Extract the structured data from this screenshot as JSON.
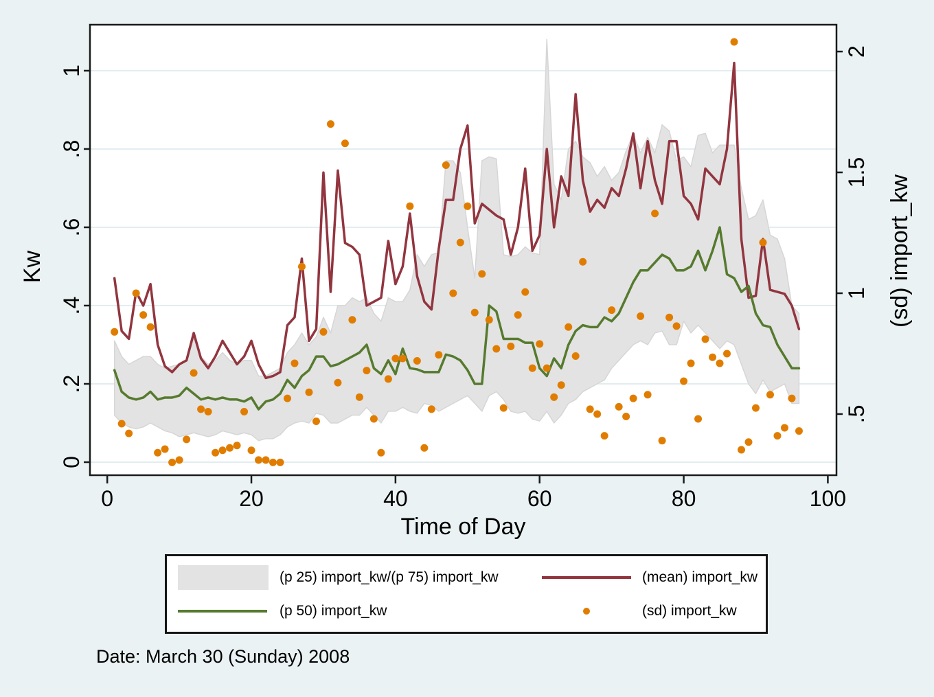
{
  "window": {
    "background_color": "#eaf2f3",
    "plot_background_color": "#ffffff",
    "gridline_color": "#e2edf0",
    "frame_color": "#1a1a1a"
  },
  "chart_data": {
    "type": "line",
    "title": "",
    "caption": "Date: March 30 (Sunday) 2008",
    "grid": "horizontal",
    "x_start": 1,
    "n_points": 96,
    "axes": {
      "x": {
        "label": "Time of Day",
        "tick_labels": [
          "0",
          "20",
          "40",
          "60",
          "80",
          "100"
        ],
        "tick_values": [
          0,
          20,
          40,
          60,
          80,
          100
        ],
        "range": [
          -2.4,
          101.2
        ]
      },
      "y_left": {
        "label": "Kw",
        "tick_labels": [
          "0",
          ".2",
          ".4",
          ".6",
          ".8",
          "1"
        ],
        "tick_values": [
          0,
          0.2,
          0.4,
          0.6,
          0.8,
          1
        ],
        "range": [
          -0.0333,
          1.1175
        ]
      },
      "y_right": {
        "label": "(sd) import_kw",
        "tick_labels": [
          ".5",
          "1",
          "1.5",
          "2"
        ],
        "tick_values": [
          0.5,
          1,
          1.5,
          2
        ],
        "range": [
          0.247,
          2.111
        ]
      }
    },
    "legend": {
      "position": "bottom",
      "items": [
        {
          "label": "(p 25) import_kw/(p 75) import_kw",
          "marker": "band",
          "color": "#e3e3e3"
        },
        {
          "label": "(mean) import_kw",
          "marker": "line",
          "color": "#92353f"
        },
        {
          "label": "(p 50) import_kw",
          "marker": "line",
          "color": "#567a2e"
        },
        {
          "label": "(sd) import_kw",
          "marker": "dot",
          "color": "#e07d00"
        }
      ]
    },
    "series": [
      {
        "name": "(p 25) import_kw/(p 75) import_kw",
        "type": "band",
        "axis": "left",
        "fill_color": "#e3e3e3",
        "edge_color": "#d6d6d6",
        "lower": [
          0.12,
          0.1,
          0.09,
          0.085,
          0.09,
          0.1,
          0.09,
          0.08,
          0.075,
          0.065,
          0.07,
          0.075,
          0.07,
          0.065,
          0.07,
          0.08,
          0.075,
          0.07,
          0.075,
          0.07,
          0.055,
          0.06,
          0.06,
          0.07,
          0.09,
          0.1,
          0.105,
          0.1,
          0.125,
          0.12,
          0.1,
          0.1,
          0.11,
          0.12,
          0.12,
          0.14,
          0.12,
          0.1,
          0.13,
          0.13,
          0.14,
          0.13,
          0.125,
          0.15,
          0.145,
          0.13,
          0.14,
          0.15,
          0.16,
          0.17,
          0.15,
          0.13,
          0.17,
          0.18,
          0.16,
          0.13,
          0.125,
          0.13,
          0.11,
          0.105,
          0.13,
          0.1,
          0.12,
          0.15,
          0.16,
          0.18,
          0.19,
          0.2,
          0.21,
          0.24,
          0.26,
          0.28,
          0.3,
          0.31,
          0.3,
          0.33,
          0.335,
          0.3,
          0.3,
          0.36,
          0.33,
          0.35,
          0.33,
          0.31,
          0.29,
          0.31,
          0.3,
          0.25,
          0.2,
          0.175,
          0.21,
          0.18,
          0.19,
          0.2,
          0.15,
          0.15
        ],
        "upper": [
          0.31,
          0.27,
          0.25,
          0.26,
          0.27,
          0.27,
          0.25,
          0.24,
          0.245,
          0.25,
          0.26,
          0.315,
          0.27,
          0.25,
          0.26,
          0.28,
          0.26,
          0.25,
          0.26,
          0.26,
          0.22,
          0.22,
          0.23,
          0.24,
          0.28,
          0.3,
          0.33,
          0.3,
          0.32,
          0.37,
          0.33,
          0.4,
          0.4,
          0.42,
          0.41,
          0.42,
          0.38,
          0.36,
          0.42,
          0.41,
          0.41,
          0.44,
          0.53,
          0.5,
          0.53,
          0.535,
          0.77,
          0.77,
          0.74,
          0.6,
          0.47,
          0.77,
          0.78,
          0.775,
          0.53,
          0.525,
          0.53,
          0.55,
          0.535,
          0.53,
          1.08,
          0.71,
          0.67,
          0.8,
          0.82,
          0.78,
          0.765,
          0.73,
          0.755,
          0.72,
          0.74,
          0.795,
          0.837,
          0.79,
          0.83,
          0.79,
          0.862,
          0.846,
          0.77,
          0.78,
          0.755,
          0.835,
          0.84,
          0.79,
          0.81,
          0.81,
          0.81,
          0.7,
          0.62,
          0.63,
          0.67,
          0.58,
          0.57,
          0.52,
          0.4,
          0.38
        ]
      },
      {
        "name": "(mean) import_kw",
        "type": "line",
        "axis": "left",
        "color": "#92353f",
        "width": 3.5,
        "values": [
          0.47,
          0.335,
          0.315,
          0.435,
          0.4,
          0.455,
          0.3,
          0.245,
          0.23,
          0.25,
          0.26,
          0.33,
          0.265,
          0.24,
          0.27,
          0.31,
          0.28,
          0.25,
          0.27,
          0.31,
          0.25,
          0.215,
          0.22,
          0.23,
          0.35,
          0.37,
          0.52,
          0.31,
          0.34,
          0.74,
          0.435,
          0.745,
          0.56,
          0.55,
          0.53,
          0.4,
          0.41,
          0.42,
          0.565,
          0.455,
          0.5,
          0.635,
          0.475,
          0.41,
          0.39,
          0.545,
          0.67,
          0.67,
          0.8,
          0.86,
          0.61,
          0.66,
          0.645,
          0.63,
          0.62,
          0.53,
          0.6,
          0.75,
          0.54,
          0.58,
          0.8,
          0.6,
          0.73,
          0.68,
          0.94,
          0.72,
          0.64,
          0.67,
          0.65,
          0.7,
          0.68,
          0.75,
          0.84,
          0.7,
          0.82,
          0.72,
          0.66,
          0.82,
          0.82,
          0.68,
          0.66,
          0.62,
          0.75,
          0.73,
          0.71,
          0.8,
          1.02,
          0.57,
          0.42,
          0.425,
          0.57,
          0.44,
          0.435,
          0.43,
          0.4,
          0.34
        ]
      },
      {
        "name": "(p 50) import_kw",
        "type": "line",
        "axis": "left",
        "color": "#567a2e",
        "width": 3.5,
        "values": [
          0.235,
          0.18,
          0.165,
          0.16,
          0.165,
          0.18,
          0.16,
          0.165,
          0.165,
          0.17,
          0.19,
          0.175,
          0.16,
          0.165,
          0.16,
          0.165,
          0.16,
          0.16,
          0.155,
          0.165,
          0.135,
          0.155,
          0.16,
          0.175,
          0.21,
          0.19,
          0.22,
          0.235,
          0.27,
          0.27,
          0.245,
          0.25,
          0.26,
          0.27,
          0.28,
          0.3,
          0.24,
          0.225,
          0.26,
          0.225,
          0.29,
          0.24,
          0.237,
          0.23,
          0.23,
          0.23,
          0.275,
          0.27,
          0.26,
          0.235,
          0.2,
          0.2,
          0.4,
          0.385,
          0.315,
          0.315,
          0.315,
          0.305,
          0.305,
          0.24,
          0.22,
          0.265,
          0.24,
          0.3,
          0.335,
          0.35,
          0.345,
          0.345,
          0.37,
          0.36,
          0.38,
          0.42,
          0.46,
          0.49,
          0.49,
          0.51,
          0.53,
          0.52,
          0.49,
          0.49,
          0.5,
          0.54,
          0.49,
          0.54,
          0.6,
          0.48,
          0.47,
          0.435,
          0.45,
          0.38,
          0.35,
          0.345,
          0.3,
          0.27,
          0.24,
          0.24
        ]
      },
      {
        "name": "(sd) import_kw",
        "type": "scatter",
        "axis": "right",
        "color": "#e07d00",
        "radius": 5.5,
        "values": [
          0.84,
          0.46,
          0.42,
          1.0,
          0.91,
          0.86,
          0.34,
          0.355,
          0.3,
          0.31,
          0.395,
          0.67,
          0.52,
          0.51,
          0.34,
          0.35,
          0.36,
          0.37,
          0.51,
          0.35,
          0.31,
          0.31,
          0.3,
          0.3,
          0.565,
          0.71,
          1.11,
          0.59,
          0.47,
          0.84,
          1.7,
          0.63,
          1.62,
          0.89,
          0.57,
          0.68,
          0.48,
          0.34,
          0.645,
          0.73,
          0.73,
          1.36,
          0.72,
          0.36,
          0.52,
          0.745,
          1.53,
          1.0,
          1.21,
          1.36,
          0.92,
          1.08,
          0.89,
          0.77,
          0.525,
          0.78,
          0.91,
          1.005,
          0.69,
          0.79,
          0.69,
          0.57,
          0.62,
          0.86,
          0.74,
          1.13,
          0.52,
          0.5,
          0.41,
          0.93,
          0.53,
          0.49,
          0.565,
          0.905,
          0.58,
          1.33,
          0.39,
          0.9,
          0.864,
          0.636,
          0.71,
          0.48,
          0.81,
          0.735,
          0.71,
          0.75,
          2.04,
          0.352,
          0.384,
          0.525,
          1.21,
          0.58,
          0.41,
          0.443,
          0.565,
          0.43
        ]
      }
    ]
  }
}
